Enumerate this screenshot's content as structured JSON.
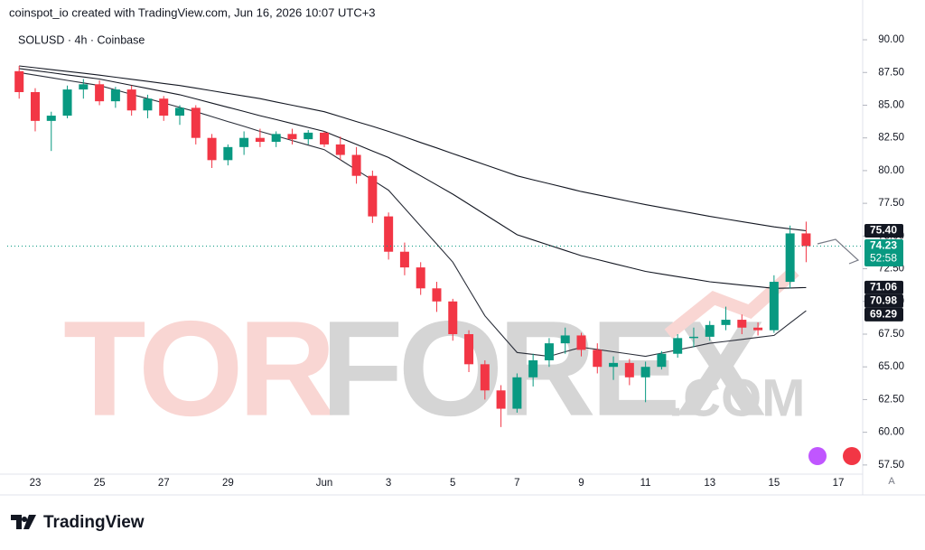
{
  "header": "coinspot_io created with TradingView.com, Jun 16, 2026 10:07 UTC+3",
  "brand": "TradingView",
  "watermark": [
    "TOR",
    "FOREX",
    ".COM"
  ],
  "auto_button": "A",
  "chart_data": {
    "type": "candlestick",
    "title": "SOLUSD · 4h · Coinbase",
    "categories": [
      null,
      "23",
      null,
      null,
      null,
      "25",
      null,
      null,
      null,
      "27",
      null,
      null,
      null,
      "29",
      null,
      null,
      null,
      null,
      null,
      "Jun",
      null,
      null,
      null,
      "3",
      null,
      null,
      null,
      "5",
      null,
      null,
      null,
      "7",
      null,
      null,
      null,
      "9",
      null,
      null,
      null,
      "11",
      null,
      null,
      null,
      "13",
      null,
      null,
      null,
      "15",
      null,
      null,
      null,
      "17"
    ],
    "open": [
      87.6,
      86.0,
      83.8,
      84.2,
      86.2,
      86.6,
      85.3,
      86.2,
      84.6,
      85.5,
      84.2,
      84.8,
      82.5,
      80.8,
      81.8,
      82.5,
      82.2,
      82.8,
      82.4,
      82.9,
      82.0,
      81.2,
      79.6,
      76.5,
      73.8,
      72.6,
      71.0,
      70.0,
      67.5,
      65.2,
      63.2,
      61.8,
      64.2,
      65.5,
      66.8,
      67.4,
      66.3,
      65.0,
      65.3,
      64.2,
      65.0,
      66.0,
      67.2,
      67.3,
      68.2,
      68.6,
      68.0,
      67.8,
      71.5,
      75.2,
      null,
      null
    ],
    "high": [
      88.0,
      86.3,
      84.5,
      86.5,
      87.0,
      86.9,
      86.4,
      86.5,
      85.8,
      85.7,
      85.0,
      85.0,
      82.8,
      82.0,
      83.0,
      83.2,
      83.0,
      83.2,
      83.1,
      83.0,
      82.6,
      81.8,
      80.0,
      76.8,
      74.5,
      73.0,
      71.5,
      70.2,
      67.8,
      65.5,
      63.6,
      64.5,
      66.0,
      67.2,
      68.0,
      67.6,
      66.8,
      65.8,
      65.6,
      65.4,
      66.2,
      67.5,
      68.0,
      68.5,
      69.6,
      69.0,
      68.4,
      72.0,
      75.8,
      76.1,
      null,
      null
    ],
    "low": [
      85.5,
      83.0,
      81.5,
      84.0,
      85.5,
      85.0,
      84.8,
      84.2,
      84.0,
      83.8,
      83.5,
      82.0,
      80.2,
      80.4,
      81.2,
      81.8,
      81.8,
      82.0,
      82.0,
      81.8,
      80.8,
      79.0,
      76.0,
      73.2,
      72.0,
      70.5,
      69.2,
      67.0,
      64.6,
      62.5,
      60.4,
      61.5,
      63.5,
      65.0,
      66.0,
      65.8,
      64.5,
      64.0,
      63.6,
      62.3,
      64.8,
      65.7,
      66.5,
      67.0,
      67.8,
      67.5,
      67.4,
      67.6,
      71.0,
      73.0,
      null,
      null
    ],
    "close": [
      86.0,
      83.8,
      84.2,
      86.2,
      86.6,
      85.3,
      86.2,
      84.6,
      85.5,
      84.2,
      84.8,
      82.5,
      80.8,
      81.8,
      82.5,
      82.2,
      82.8,
      82.4,
      82.9,
      82.0,
      81.2,
      79.6,
      76.5,
      73.8,
      72.6,
      71.0,
      70.0,
      67.5,
      65.2,
      63.2,
      61.8,
      64.2,
      65.5,
      66.8,
      67.4,
      66.3,
      65.0,
      65.3,
      64.2,
      65.0,
      66.0,
      67.2,
      67.3,
      68.2,
      68.6,
      68.0,
      67.8,
      71.5,
      75.2,
      74.23,
      null,
      null
    ],
    "up_color": "#089981",
    "down_color": "#f23645",
    "lines": [
      {
        "color": "#131722",
        "values": [
          88.0,
          87.86,
          87.72,
          87.58,
          87.44,
          87.3,
          87.14,
          86.98,
          86.82,
          86.66,
          86.5,
          86.3,
          86.1,
          85.9,
          85.7,
          85.5,
          85.25,
          85.0,
          84.75,
          84.5,
          84.13,
          83.75,
          83.38,
          83.0,
          82.58,
          82.15,
          81.73,
          81.3,
          80.88,
          80.45,
          80.03,
          79.6,
          79.3,
          79.0,
          78.7,
          78.4,
          78.15,
          77.9,
          77.65,
          77.4,
          77.18,
          76.95,
          76.73,
          76.5,
          76.3,
          76.1,
          75.9,
          75.7,
          75.55,
          75.4,
          null,
          null
        ]
      },
      {
        "color": "#131722",
        "values": [
          87.8,
          87.64,
          87.48,
          87.32,
          87.16,
          87.0,
          86.76,
          86.52,
          86.28,
          86.04,
          85.8,
          85.48,
          85.16,
          84.84,
          84.52,
          84.2,
          83.9,
          83.6,
          83.3,
          83.0,
          82.5,
          82.0,
          81.5,
          81.0,
          80.3,
          79.6,
          78.9,
          78.2,
          77.43,
          76.65,
          75.88,
          75.1,
          74.7,
          74.3,
          73.9,
          73.5,
          73.2,
          72.9,
          72.6,
          72.3,
          72.1,
          71.9,
          71.7,
          71.5,
          71.38,
          71.25,
          71.13,
          71.0,
          71.03,
          71.06,
          null,
          null
        ]
      },
      {
        "color": "#2a2e39",
        "values": [
          87.5,
          87.3,
          87.1,
          86.9,
          86.7,
          86.5,
          86.17,
          85.83,
          85.5,
          85.17,
          84.83,
          84.5,
          84.13,
          83.75,
          83.38,
          83.0,
          82.65,
          82.3,
          81.95,
          81.6,
          80.83,
          80.05,
          79.28,
          78.5,
          77.13,
          75.75,
          74.38,
          73.0,
          70.95,
          68.9,
          67.5,
          66.1,
          65.95,
          65.8,
          66.15,
          66.5,
          66.33,
          66.15,
          65.98,
          65.8,
          66.05,
          66.3,
          66.55,
          66.8,
          66.95,
          67.1,
          67.25,
          67.4,
          68.35,
          69.29,
          null,
          null
        ]
      }
    ],
    "ylim": [
      56.8,
      92.35
    ],
    "yticks": [
      {
        "value": 57.5,
        "label": "57.50"
      },
      {
        "value": 60,
        "label": "60.00"
      },
      {
        "value": 62.5,
        "label": "62.50"
      },
      {
        "value": 65,
        "label": "65.00"
      },
      {
        "value": 67.5,
        "label": "67.50"
      },
      {
        "value": 70,
        "label": "70.00"
      },
      {
        "value": 72.5,
        "label": "72.50"
      },
      {
        "value": 75,
        "label": "75.00"
      },
      {
        "value": 77.5,
        "label": "77.50"
      },
      {
        "value": 80,
        "label": "80.00"
      },
      {
        "value": 82.5,
        "label": "82.50"
      },
      {
        "value": 85,
        "label": "85.00"
      },
      {
        "value": 87.5,
        "label": "87.50"
      },
      {
        "value": 90,
        "label": "90.00"
      }
    ],
    "price_labels": [
      {
        "value": 75.4,
        "label": "75.40",
        "color": "#131722"
      },
      {
        "value": 74.23,
        "label": "74.23",
        "color": "#089981"
      },
      {
        "value": 71.06,
        "label": "71.06",
        "color": "#131722"
      },
      {
        "value": 70.98,
        "label": "70.98",
        "color": "#131722"
      },
      {
        "value": 69.29,
        "label": "69.29",
        "color": "#131722"
      }
    ],
    "countdown": "52:58"
  }
}
